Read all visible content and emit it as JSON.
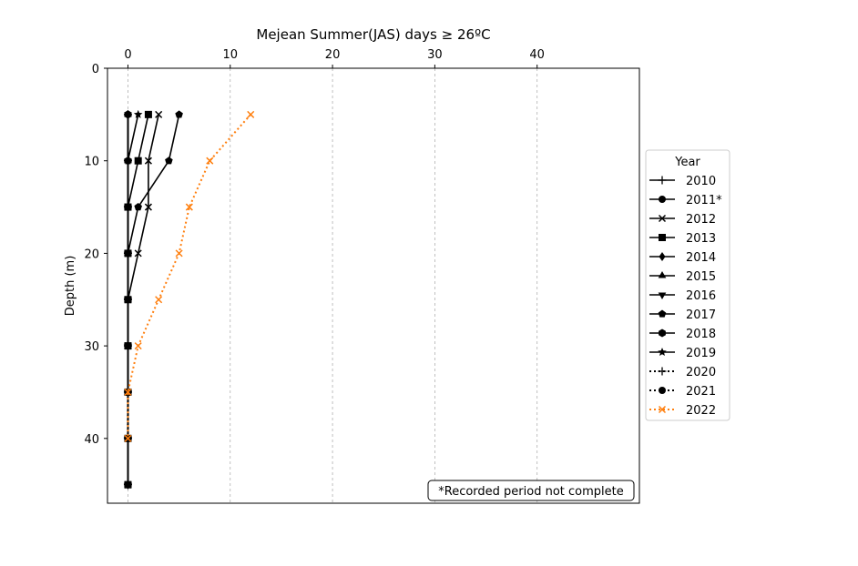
{
  "chart_data": {
    "type": "line",
    "title": "Mejean Summer(JAS) days ≥ 26ºC",
    "xlabel": "",
    "ylabel": "Depth (m)",
    "xlim": [
      -2,
      50
    ],
    "ylim": [
      47,
      0
    ],
    "x_axis_position": "top",
    "y_inverted": true,
    "xticks": [
      "0",
      "10",
      "20",
      "30",
      "40"
    ],
    "yticks": [
      "0",
      "10",
      "20",
      "30",
      "40"
    ],
    "grid": "vertical dashed",
    "legend": {
      "title": "Year",
      "placement": "right"
    },
    "annotation": "*Recorded period not complete",
    "series": [
      {
        "name": "2010",
        "color": "#000000",
        "linestyle": "solid",
        "marker": "plus",
        "points": [
          [
            0,
            5
          ],
          [
            0,
            10
          ],
          [
            0,
            15
          ],
          [
            0,
            20
          ],
          [
            0,
            25
          ],
          [
            0,
            30
          ],
          [
            0,
            35
          ],
          [
            0,
            40
          ],
          [
            0,
            45
          ]
        ]
      },
      {
        "name": "2011*",
        "color": "#000000",
        "linestyle": "solid",
        "marker": "circle",
        "points": [
          [
            0,
            5
          ],
          [
            0,
            10
          ],
          [
            0,
            15
          ],
          [
            0,
            20
          ],
          [
            0,
            25
          ],
          [
            0,
            30
          ],
          [
            0,
            35
          ],
          [
            0,
            40
          ],
          [
            0,
            45
          ]
        ]
      },
      {
        "name": "2012",
        "color": "#000000",
        "linestyle": "solid",
        "marker": "x",
        "points": [
          [
            3,
            5
          ],
          [
            2,
            10
          ],
          [
            2,
            15
          ],
          [
            1,
            20
          ],
          [
            0,
            25
          ],
          [
            0,
            30
          ],
          [
            0,
            35
          ],
          [
            0,
            40
          ],
          [
            0,
            45
          ]
        ]
      },
      {
        "name": "2013",
        "color": "#000000",
        "linestyle": "solid",
        "marker": "square",
        "points": [
          [
            2,
            5
          ],
          [
            1,
            10
          ],
          [
            0,
            15
          ],
          [
            0,
            20
          ],
          [
            0,
            25
          ],
          [
            0,
            30
          ],
          [
            0,
            35
          ],
          [
            0,
            40
          ],
          [
            0,
            45
          ]
        ]
      },
      {
        "name": "2014",
        "color": "#000000",
        "linestyle": "solid",
        "marker": "diamond",
        "points": [
          [
            0,
            5
          ],
          [
            0,
            10
          ],
          [
            0,
            15
          ],
          [
            0,
            20
          ],
          [
            0,
            25
          ],
          [
            0,
            30
          ],
          [
            0,
            35
          ],
          [
            0,
            40
          ],
          [
            0,
            45
          ]
        ]
      },
      {
        "name": "2015",
        "color": "#000000",
        "linestyle": "solid",
        "marker": "triangle-up",
        "points": [
          [
            0,
            5
          ],
          [
            0,
            10
          ],
          [
            0,
            15
          ],
          [
            0,
            20
          ],
          [
            0,
            25
          ],
          [
            0,
            30
          ],
          [
            0,
            35
          ],
          [
            0,
            40
          ],
          [
            0,
            45
          ]
        ]
      },
      {
        "name": "2016",
        "color": "#000000",
        "linestyle": "solid",
        "marker": "triangle-down",
        "points": [
          [
            0,
            5
          ],
          [
            0,
            10
          ],
          [
            0,
            15
          ],
          [
            0,
            20
          ],
          [
            0,
            25
          ],
          [
            0,
            30
          ],
          [
            0,
            35
          ],
          [
            0,
            40
          ],
          [
            0,
            45
          ]
        ]
      },
      {
        "name": "2017",
        "color": "#000000",
        "linestyle": "solid",
        "marker": "pentagon",
        "points": [
          [
            5,
            5
          ],
          [
            4,
            10
          ],
          [
            1,
            15
          ],
          [
            0,
            20
          ],
          [
            0,
            25
          ],
          [
            0,
            30
          ],
          [
            0,
            35
          ],
          [
            0,
            40
          ],
          [
            0,
            45
          ]
        ]
      },
      {
        "name": "2018",
        "color": "#000000",
        "linestyle": "solid",
        "marker": "hexagon",
        "points": [
          [
            0,
            5
          ],
          [
            0,
            10
          ],
          [
            0,
            15
          ],
          [
            0,
            20
          ],
          [
            0,
            25
          ],
          [
            0,
            30
          ],
          [
            0,
            35
          ],
          [
            0,
            40
          ],
          [
            0,
            45
          ]
        ]
      },
      {
        "name": "2019",
        "color": "#000000",
        "linestyle": "solid",
        "marker": "star",
        "points": [
          [
            1,
            5
          ],
          [
            0,
            10
          ],
          [
            0,
            15
          ],
          [
            0,
            20
          ],
          [
            0,
            25
          ],
          [
            0,
            30
          ],
          [
            0,
            35
          ],
          [
            0,
            40
          ],
          [
            0,
            45
          ]
        ]
      },
      {
        "name": "2020",
        "color": "#000000",
        "linestyle": "dotted",
        "marker": "plus",
        "points": [
          [
            0,
            35
          ],
          [
            0,
            40
          ]
        ]
      },
      {
        "name": "2021",
        "color": "#000000",
        "linestyle": "dotted",
        "marker": "circle",
        "points": [
          [
            0,
            35
          ],
          [
            0,
            40
          ]
        ]
      },
      {
        "name": "2022",
        "color": "#ff7f0e",
        "linestyle": "dotted",
        "marker": "x",
        "points": [
          [
            12,
            5
          ],
          [
            8,
            10
          ],
          [
            6,
            15
          ],
          [
            5,
            20
          ],
          [
            3,
            25
          ],
          [
            1,
            30
          ],
          [
            0,
            35
          ],
          [
            0,
            40
          ]
        ]
      }
    ]
  }
}
